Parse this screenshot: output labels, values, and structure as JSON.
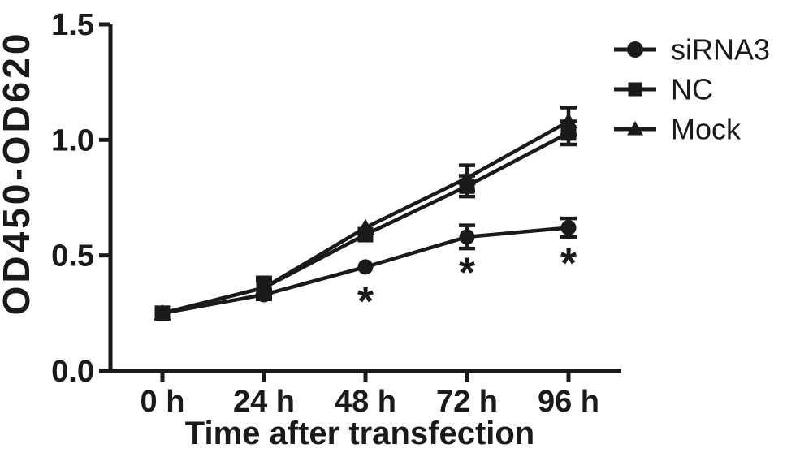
{
  "figure": {
    "background": "#ffffff",
    "ink": "#1a1a1a"
  },
  "chart_data": {
    "type": "line",
    "title": "",
    "xlabel": "Time after transfection",
    "ylabel": "OD450-OD620",
    "x": [
      0,
      24,
      48,
      72,
      96
    ],
    "x_tick_labels": [
      "0 h",
      "24 h",
      "48 h",
      "72 h",
      "96 h"
    ],
    "y_ticks": [
      0,
      0.5,
      1.0,
      1.5
    ],
    "y_tick_labels": [
      "0.0",
      "0.5",
      "1.0",
      "1.5"
    ],
    "ylim": [
      0,
      1.5
    ],
    "grid": false,
    "legend_position": "top-right",
    "error_bars": true,
    "series": [
      {
        "name": "siRNA3",
        "marker": "circle",
        "values": [
          0.25,
          0.33,
          0.45,
          0.58,
          0.62
        ],
        "errors": [
          0,
          0.02,
          0,
          0.05,
          0.04
        ]
      },
      {
        "name": "NC",
        "marker": "square",
        "values": [
          0.25,
          0.36,
          0.59,
          0.8,
          1.03
        ],
        "errors": [
          0,
          0.045,
          0,
          0.045,
          0.05
        ]
      },
      {
        "name": "Mock",
        "marker": "triangle",
        "values": [
          0.25,
          0.36,
          0.62,
          0.835,
          1.08
        ],
        "errors": [
          0,
          0.03,
          0,
          0.055,
          0.06
        ]
      }
    ],
    "annotations": [
      {
        "label": "*",
        "x": 48,
        "y": 0.33
      },
      {
        "label": "*",
        "x": 72,
        "y": 0.455
      },
      {
        "label": "*",
        "x": 96,
        "y": 0.495
      }
    ]
  }
}
